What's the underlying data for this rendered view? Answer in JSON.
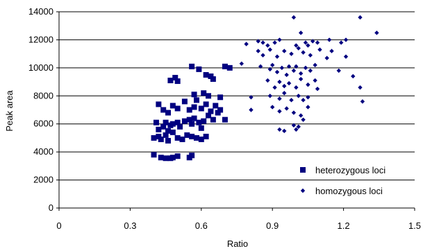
{
  "chart_data": {
    "type": "scatter",
    "title": "",
    "xlabel": "Ratio",
    "ylabel": "Peak area",
    "xlim": [
      0,
      1.5
    ],
    "ylim": [
      0,
      14000
    ],
    "xticks": [
      "0",
      "0.3",
      "0.6",
      "0.9",
      "1.2",
      "1.5"
    ],
    "yticks": [
      "0",
      "2000",
      "4000",
      "6000",
      "8000",
      "10000",
      "12000",
      "14000"
    ],
    "grid": "horizontal",
    "legend_position": "bottom-right",
    "series": [
      {
        "name": "heterozygous loci",
        "marker": "square",
        "color": "#000080",
        "points": [
          [
            0.4,
            3800
          ],
          [
            0.43,
            3600
          ],
          [
            0.45,
            3550
          ],
          [
            0.47,
            3550
          ],
          [
            0.48,
            3600
          ],
          [
            0.5,
            3700
          ],
          [
            0.55,
            3600
          ],
          [
            0.56,
            3750
          ],
          [
            0.4,
            5000
          ],
          [
            0.42,
            5100
          ],
          [
            0.43,
            4900
          ],
          [
            0.45,
            5200
          ],
          [
            0.46,
            4800
          ],
          [
            0.48,
            5400
          ],
          [
            0.5,
            5000
          ],
          [
            0.52,
            4900
          ],
          [
            0.54,
            5200
          ],
          [
            0.56,
            5100
          ],
          [
            0.58,
            5000
          ],
          [
            0.6,
            4900
          ],
          [
            0.62,
            5100
          ],
          [
            0.42,
            5600
          ],
          [
            0.44,
            5800
          ],
          [
            0.45,
            6100
          ],
          [
            0.46,
            5500
          ],
          [
            0.47,
            5900
          ],
          [
            0.48,
            6000
          ],
          [
            0.5,
            6100
          ],
          [
            0.51,
            5800
          ],
          [
            0.53,
            6200
          ],
          [
            0.55,
            6300
          ],
          [
            0.56,
            6000
          ],
          [
            0.57,
            6400
          ],
          [
            0.59,
            6100
          ],
          [
            0.6,
            5700
          ],
          [
            0.61,
            6200
          ],
          [
            0.63,
            6600
          ],
          [
            0.65,
            6300
          ],
          [
            0.67,
            6800
          ],
          [
            0.7,
            6300
          ],
          [
            0.41,
            6100
          ],
          [
            0.42,
            7400
          ],
          [
            0.44,
            7000
          ],
          [
            0.46,
            6800
          ],
          [
            0.48,
            7300
          ],
          [
            0.5,
            7100
          ],
          [
            0.53,
            7600
          ],
          [
            0.55,
            7000
          ],
          [
            0.57,
            7200
          ],
          [
            0.58,
            7700
          ],
          [
            0.6,
            7100
          ],
          [
            0.62,
            7400
          ],
          [
            0.64,
            6900
          ],
          [
            0.66,
            7300
          ],
          [
            0.68,
            7000
          ],
          [
            0.47,
            9100
          ],
          [
            0.49,
            9300
          ],
          [
            0.5,
            9050
          ],
          [
            0.57,
            8100
          ],
          [
            0.61,
            8200
          ],
          [
            0.63,
            8000
          ],
          [
            0.68,
            7900
          ],
          [
            0.56,
            10100
          ],
          [
            0.59,
            9900
          ],
          [
            0.62,
            9500
          ],
          [
            0.64,
            9400
          ],
          [
            0.65,
            9200
          ],
          [
            0.7,
            10100
          ],
          [
            0.72,
            10000
          ]
        ]
      },
      {
        "name": "homozygous loci",
        "marker": "diamond",
        "color": "#000080",
        "points": [
          [
            0.79,
            11700
          ],
          [
            0.84,
            11900
          ],
          [
            0.86,
            11800
          ],
          [
            0.88,
            11600
          ],
          [
            0.91,
            11800
          ],
          [
            0.93,
            12000
          ],
          [
            0.99,
            13600
          ],
          [
            1.0,
            11600
          ],
          [
            1.02,
            12500
          ],
          [
            1.04,
            11800
          ],
          [
            1.05,
            11600
          ],
          [
            1.07,
            11900
          ],
          [
            1.09,
            11800
          ],
          [
            1.14,
            12000
          ],
          [
            1.19,
            11800
          ],
          [
            1.21,
            12000
          ],
          [
            1.27,
            13600
          ],
          [
            1.34,
            12500
          ],
          [
            0.84,
            11200
          ],
          [
            0.86,
            10900
          ],
          [
            0.89,
            11300
          ],
          [
            0.92,
            10800
          ],
          [
            0.95,
            11200
          ],
          [
            0.98,
            11000
          ],
          [
            1.01,
            11400
          ],
          [
            1.03,
            11100
          ],
          [
            1.06,
            10900
          ],
          [
            1.1,
            11300
          ],
          [
            1.13,
            10700
          ],
          [
            1.15,
            11200
          ],
          [
            1.21,
            10800
          ],
          [
            0.77,
            10300
          ],
          [
            0.85,
            10100
          ],
          [
            0.89,
            9900
          ],
          [
            0.9,
            10200
          ],
          [
            0.92,
            9700
          ],
          [
            0.94,
            10000
          ],
          [
            0.96,
            9500
          ],
          [
            0.97,
            10100
          ],
          [
            0.99,
            9800
          ],
          [
            1.0,
            10100
          ],
          [
            1.02,
            9600
          ],
          [
            1.04,
            10000
          ],
          [
            1.06,
            9800
          ],
          [
            1.08,
            10200
          ],
          [
            0.88,
            9100
          ],
          [
            0.91,
            8600
          ],
          [
            0.93,
            9000
          ],
          [
            0.95,
            8700
          ],
          [
            0.97,
            8900
          ],
          [
            1.0,
            8600
          ],
          [
            1.02,
            9200
          ],
          [
            1.05,
            8800
          ],
          [
            1.08,
            9100
          ],
          [
            1.09,
            8500
          ],
          [
            1.18,
            9800
          ],
          [
            1.24,
            9400
          ],
          [
            1.27,
            8600
          ],
          [
            0.81,
            7900
          ],
          [
            0.89,
            8000
          ],
          [
            0.93,
            7800
          ],
          [
            0.95,
            8200
          ],
          [
            0.98,
            7700
          ],
          [
            1.01,
            8000
          ],
          [
            1.03,
            7700
          ],
          [
            1.05,
            7900
          ],
          [
            1.28,
            7600
          ],
          [
            0.81,
            7000
          ],
          [
            0.9,
            7200
          ],
          [
            0.93,
            6900
          ],
          [
            0.96,
            7100
          ],
          [
            0.99,
            6800
          ],
          [
            1.02,
            6600
          ],
          [
            1.05,
            7200
          ],
          [
            0.93,
            5600
          ],
          [
            0.95,
            5500
          ],
          [
            0.99,
            5900
          ],
          [
            1.01,
            5800
          ],
          [
            1.03,
            6300
          ],
          [
            1.0,
            5600
          ]
        ]
      }
    ]
  }
}
